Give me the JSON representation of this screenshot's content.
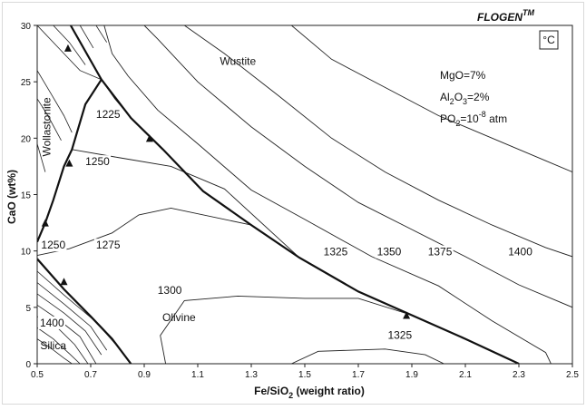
{
  "chart_data": {
    "type": "line",
    "brand": "FLOGEN",
    "brand_tm": "TM",
    "unit_box": "°C",
    "xlabel": "Fe/SiO",
    "xlabel_sub": "2",
    "xlabel_suffix": " (weight ratio)",
    "ylabel": "CaO (wt%)",
    "xlim": [
      0.5,
      2.5
    ],
    "ylim": [
      0,
      30
    ],
    "x_ticks": [
      "0.5",
      "0.7",
      "0.9",
      "1.1",
      "1.3",
      "1.5",
      "1.7",
      "1.9",
      "2.1",
      "2.3",
      "2.5"
    ],
    "y_ticks": [
      "0",
      "5",
      "10",
      "15",
      "20",
      "25",
      "30"
    ],
    "conditions": {
      "mgo": "MgO=7%",
      "al2o3_a": "Al",
      "al2o3_sub1": "2",
      "al2o3_b": "O",
      "al2o3_sub2": "3",
      "al2o3_c": "=2%",
      "po2_a": "PO",
      "po2_sub": "2",
      "po2_b": "=10",
      "po2_sup": "-8",
      "po2_c": " atm"
    },
    "regions": [
      {
        "label": "Wustite",
        "x": 1.25,
        "y": 26.5
      },
      {
        "label": "Olivine",
        "x": 1.03,
        "y": 3.8
      },
      {
        "label": "Silica",
        "x": 0.56,
        "y": 1.3
      }
    ],
    "wollastonite_label": {
      "label": "Wollastonite",
      "x": 0.55,
      "y": 21
    },
    "isotherm_labels": [
      {
        "label": "1225",
        "x": 0.72,
        "y": 21.8
      },
      {
        "label": "1250",
        "x": 0.68,
        "y": 17.6
      },
      {
        "label": "1250",
        "x": 0.515,
        "y": 10.2
      },
      {
        "label": "1275",
        "x": 0.72,
        "y": 10.2
      },
      {
        "label": "1300",
        "x": 0.95,
        "y": 6.2
      },
      {
        "label": "1325",
        "x": 1.57,
        "y": 9.6
      },
      {
        "label": "1350",
        "x": 1.77,
        "y": 9.6
      },
      {
        "label": "1375",
        "x": 1.96,
        "y": 9.6
      },
      {
        "label": "1400",
        "x": 2.26,
        "y": 9.6
      },
      {
        "label": "1325",
        "x": 1.81,
        "y": 2.2
      },
      {
        "label": "1400",
        "x": 0.51,
        "y": 3.3
      }
    ],
    "boundaries": [
      {
        "name": "wustite-olivine",
        "points": [
          [
            0.625,
            30
          ],
          [
            0.74,
            25.2
          ],
          [
            0.85,
            21.8
          ],
          [
            0.97,
            19.0
          ],
          [
            1.12,
            15.3
          ],
          [
            1.3,
            12.3
          ],
          [
            1.48,
            9.4
          ],
          [
            1.7,
            6.4
          ],
          [
            1.9,
            4.3
          ],
          [
            2.1,
            2.2
          ],
          [
            2.3,
            0
          ]
        ]
      },
      {
        "name": "wollastonite-olivine",
        "points": [
          [
            0.5,
            10.8
          ],
          [
            0.53,
            12.5
          ],
          [
            0.56,
            14.5
          ],
          [
            0.6,
            17.5
          ],
          [
            0.63,
            19.0
          ],
          [
            0.68,
            23.0
          ],
          [
            0.74,
            25.2
          ]
        ]
      },
      {
        "name": "silica-olivine",
        "points": [
          [
            0.5,
            9.3
          ],
          [
            0.6,
            6.6
          ],
          [
            0.7,
            4.2
          ],
          [
            0.78,
            2.2
          ],
          [
            0.85,
            0
          ]
        ]
      }
    ],
    "arrows": [
      {
        "x": 0.615,
        "y": 28.0,
        "angle": 0
      },
      {
        "x": 0.92,
        "y": 20.0,
        "angle": 0
      },
      {
        "x": 0.6,
        "y": 7.3,
        "angle": 0
      },
      {
        "x": 1.88,
        "y": 4.3,
        "angle": 0
      },
      {
        "x": 0.62,
        "y": 17.8,
        "angle": 0
      },
      {
        "x": 0.53,
        "y": 12.5,
        "angle": 0
      }
    ],
    "isotherms": [
      {
        "label": "1225",
        "points": [
          [
            0.74,
            25.2
          ],
          [
            0.79,
            23.5
          ],
          [
            0.85,
            21.8
          ]
        ]
      },
      {
        "label": "1250",
        "points": [
          [
            0.63,
            19.0
          ],
          [
            0.8,
            18.3
          ],
          [
            1.0,
            17.5
          ],
          [
            1.2,
            15.5
          ],
          [
            1.48,
            9.4
          ]
        ]
      },
      {
        "label": "1275",
        "points": [
          [
            0.5,
            9.6
          ],
          [
            0.62,
            10.2
          ],
          [
            0.78,
            11.6
          ],
          [
            0.88,
            13.2
          ],
          [
            1.0,
            13.8
          ],
          [
            1.3,
            12.3
          ]
        ]
      },
      {
        "label": "1300",
        "points": [
          [
            0.98,
            0
          ],
          [
            0.96,
            2.5
          ],
          [
            1.05,
            5.6
          ],
          [
            1.25,
            6.0
          ],
          [
            1.5,
            5.8
          ],
          [
            1.7,
            5.8
          ],
          [
            1.9,
            4.3
          ]
        ]
      },
      {
        "label": "1325",
        "points": [
          [
            1.45,
            0
          ],
          [
            1.55,
            1.1
          ],
          [
            1.8,
            1.3
          ],
          [
            1.95,
            0.8
          ],
          [
            2.02,
            0
          ]
        ]
      },
      {
        "label": "1325",
        "points": [
          [
            0.75,
            30
          ],
          [
            0.78,
            27.5
          ],
          [
            0.84,
            25.5
          ],
          [
            0.95,
            22.5
          ],
          [
            1.1,
            19.5
          ],
          [
            1.3,
            15.4
          ],
          [
            1.5,
            12.8
          ],
          [
            1.75,
            9.5
          ],
          [
            2.0,
            6.9
          ],
          [
            2.2,
            3.8
          ],
          [
            2.4,
            1.0
          ],
          [
            2.42,
            0
          ]
        ]
      },
      {
        "label": "1350",
        "points": [
          [
            0.9,
            30
          ],
          [
            0.95,
            28.8
          ],
          [
            1.1,
            25.0
          ],
          [
            1.3,
            21.0
          ],
          [
            1.5,
            17.5
          ],
          [
            1.7,
            14.3
          ],
          [
            1.9,
            11.9
          ],
          [
            2.1,
            9.5
          ],
          [
            2.3,
            7.0
          ],
          [
            2.5,
            5.0
          ]
        ]
      },
      {
        "label": "1375",
        "points": [
          [
            1.05,
            30
          ],
          [
            1.2,
            27.5
          ],
          [
            1.4,
            23.8
          ],
          [
            1.6,
            20.0
          ],
          [
            1.8,
            17.0
          ],
          [
            2.0,
            14.5
          ],
          [
            2.2,
            12.3
          ],
          [
            2.4,
            10.3
          ],
          [
            2.5,
            9.5
          ]
        ]
      },
      {
        "label": "1400",
        "points": [
          [
            1.45,
            30
          ],
          [
            1.6,
            27.0
          ],
          [
            1.8,
            24.5
          ],
          [
            2.0,
            22.0
          ],
          [
            2.2,
            20.0
          ],
          [
            2.4,
            18.0
          ],
          [
            2.5,
            17.0
          ]
        ]
      }
    ],
    "wollastonite_lines": [
      {
        "points": [
          [
            0.5,
            30
          ],
          [
            0.58,
            28.0
          ],
          [
            0.66,
            26.0
          ],
          [
            0.74,
            25.2
          ]
        ]
      },
      {
        "points": [
          [
            0.5,
            26.0
          ],
          [
            0.55,
            24.0
          ],
          [
            0.6,
            22.0
          ],
          [
            0.63,
            20.5
          ]
        ]
      },
      {
        "points": [
          [
            0.5,
            23.5
          ],
          [
            0.54,
            22.0
          ],
          [
            0.59,
            19.8
          ]
        ]
      },
      {
        "points": [
          [
            0.5,
            19.5
          ],
          [
            0.53,
            17.0
          ]
        ]
      },
      {
        "points": [
          [
            0.56,
            30
          ],
          [
            0.62,
            28.5
          ],
          [
            0.68,
            26.5
          ]
        ]
      },
      {
        "points": [
          [
            0.66,
            30
          ],
          [
            0.71,
            28.0
          ]
        ]
      },
      {
        "points": [
          [
            0.72,
            30
          ],
          [
            0.76,
            28.5
          ]
        ]
      }
    ],
    "silica_lines": [
      {
        "points": [
          [
            0.5,
            8.2
          ],
          [
            0.6,
            6.1
          ],
          [
            0.72,
            3.7
          ],
          [
            0.79,
            1.8
          ]
        ]
      },
      {
        "points": [
          [
            0.5,
            7.2
          ],
          [
            0.6,
            5.3
          ],
          [
            0.7,
            3.3
          ],
          [
            0.76,
            1.2
          ]
        ]
      },
      {
        "points": [
          [
            0.5,
            6.2
          ],
          [
            0.6,
            4.5
          ],
          [
            0.68,
            2.9
          ],
          [
            0.74,
            0.8
          ]
        ]
      },
      {
        "points": [
          [
            0.5,
            5.2
          ],
          [
            0.58,
            3.9
          ],
          [
            0.66,
            2.4
          ],
          [
            0.72,
            0
          ]
        ]
      },
      {
        "points": [
          [
            0.5,
            4.2
          ],
          [
            0.58,
            3.1
          ],
          [
            0.64,
            1.7
          ],
          [
            0.69,
            0
          ]
        ]
      },
      {
        "points": [
          [
            0.5,
            3.2
          ],
          [
            0.56,
            2.2
          ],
          [
            0.62,
            0.9
          ],
          [
            0.66,
            0
          ]
        ]
      },
      {
        "points": [
          [
            0.5,
            2.2
          ],
          [
            0.55,
            1.4
          ],
          [
            0.6,
            0.5
          ],
          [
            0.63,
            0
          ]
        ]
      }
    ]
  }
}
